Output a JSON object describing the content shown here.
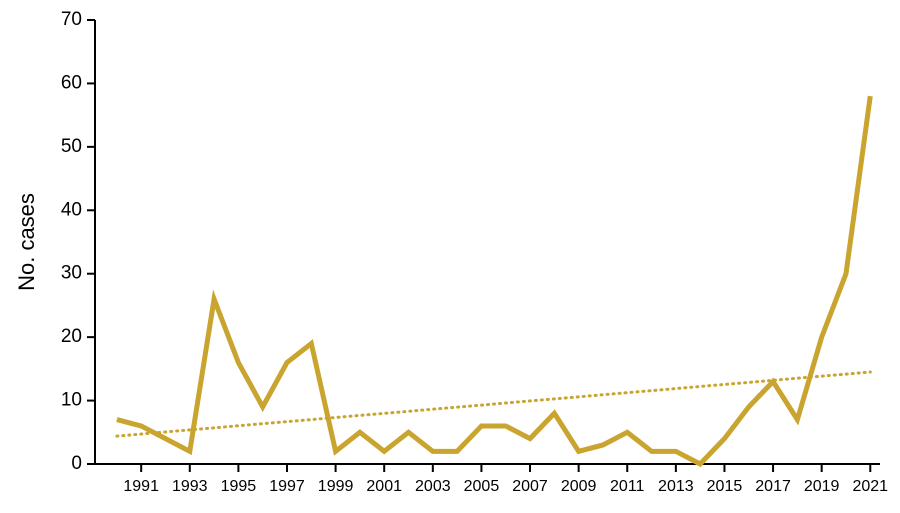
{
  "chart_data": {
    "type": "line",
    "y_label": "No. cases",
    "x": [
      1990,
      1991,
      1992,
      1993,
      1994,
      1995,
      1996,
      1997,
      1998,
      1999,
      2000,
      2001,
      2002,
      2003,
      2004,
      2005,
      2006,
      2007,
      2008,
      2009,
      2010,
      2011,
      2012,
      2013,
      2014,
      2015,
      2016,
      2017,
      2018,
      2019,
      2020,
      2021
    ],
    "values": [
      7,
      6,
      4,
      2,
      26,
      16,
      9,
      16,
      19,
      2,
      5,
      2,
      5,
      2,
      2,
      6,
      6,
      4,
      8,
      2,
      3,
      5,
      2,
      2,
      0,
      4,
      9,
      13,
      7,
      20,
      30,
      58
    ],
    "color": "#c9a42f",
    "trendline": {
      "x": [
        1990,
        2021
      ],
      "values": [
        4.4,
        14.5
      ],
      "color": "#c9a42f",
      "style": "dotted"
    },
    "xlim": [
      1989.1,
      2021.4
    ],
    "xticks": [
      1991,
      1993,
      1995,
      1997,
      1999,
      2001,
      2003,
      2005,
      2007,
      2009,
      2011,
      2013,
      2015,
      2017,
      2019,
      2021
    ],
    "ylim": [
      0,
      70
    ],
    "yticks": [
      0,
      10,
      20,
      30,
      40,
      50,
      60,
      70
    ]
  }
}
